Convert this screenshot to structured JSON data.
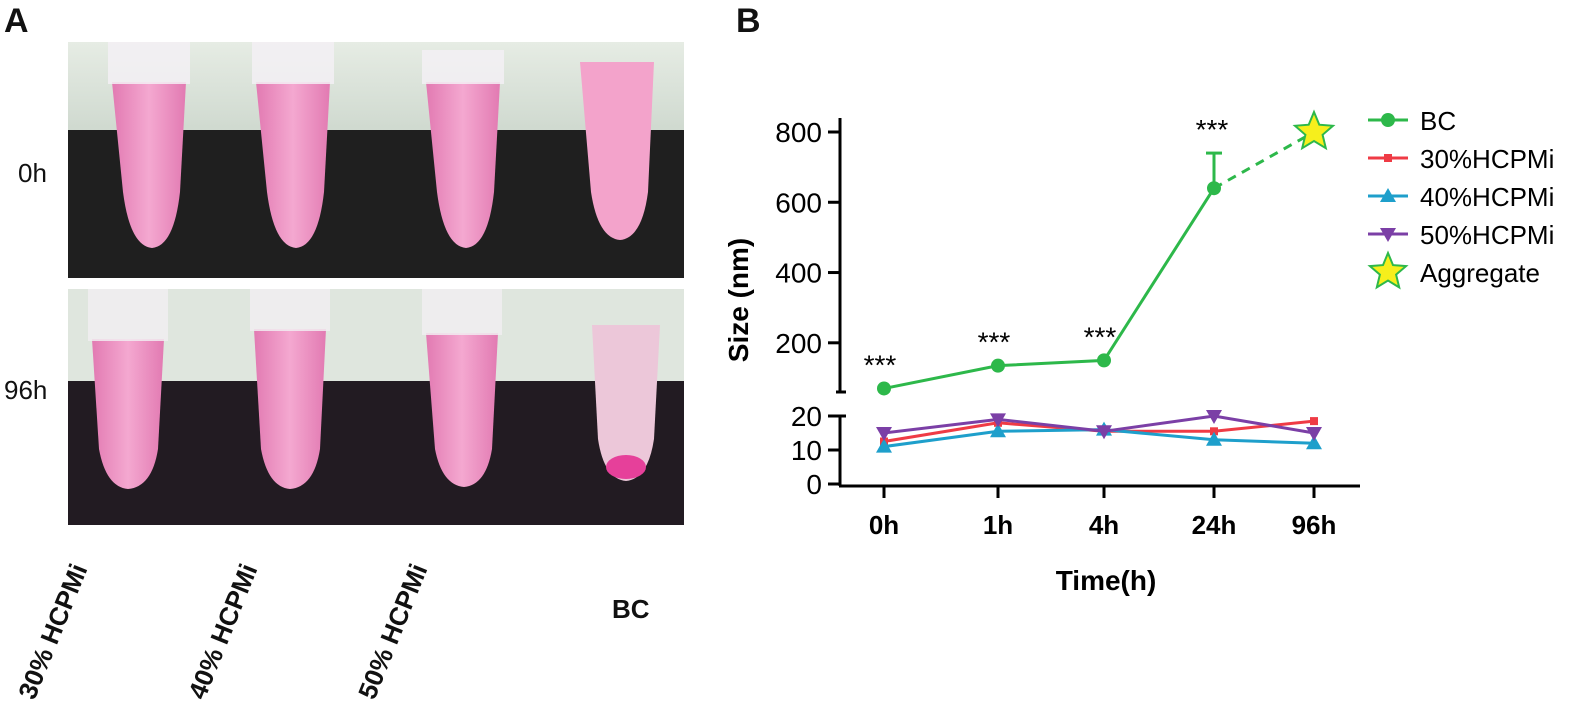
{
  "panel_a": {
    "label": "A",
    "rows": [
      {
        "label": "0h"
      },
      {
        "label": "96h"
      }
    ],
    "columns": [
      "30% HCPMi",
      "40% HCPMi",
      "50% HCPMi",
      "BC"
    ]
  },
  "panel_b": {
    "label": "B"
  },
  "colors": {
    "BC": "#2db84a",
    "30%HCPMi": "#ef3b45",
    "40%HCPMi": "#1e9fcb",
    "50%HCPMi": "#7b3fa6",
    "Aggregate_fill": "#f6ef1c",
    "Aggregate_stroke": "#2db84a"
  },
  "chart_data": {
    "type": "line",
    "xlabel": "Time(h)",
    "ylabel": "Size (nm)",
    "categories": [
      "0h",
      "1h",
      "4h",
      "24h",
      "96h"
    ],
    "y_axis": "broken",
    "y_segments": [
      {
        "range": [
          0,
          20
        ],
        "ticks": [
          0,
          10,
          20
        ]
      },
      {
        "range": [
          60,
          820
        ],
        "ticks": [
          200,
          400,
          600,
          800
        ]
      }
    ],
    "series": [
      {
        "name": "BC",
        "marker": "circle",
        "values": [
          70,
          135,
          150,
          640,
          null
        ],
        "error_top": [
          null,
          null,
          null,
          740,
          null
        ]
      },
      {
        "name": "30%HCPMi",
        "marker": "square",
        "values": [
          12.5,
          18,
          15.5,
          15.5,
          18.5
        ]
      },
      {
        "name": "40%HCPMi",
        "marker": "triangle-up",
        "values": [
          11,
          15.5,
          16,
          13,
          12
        ]
      },
      {
        "name": "50%HCPMi",
        "marker": "triangle-down",
        "values": [
          15,
          19,
          15.5,
          20,
          15
        ]
      }
    ],
    "aggregate": {
      "name": "Aggregate",
      "marker": "star",
      "category": "96h",
      "value": 800,
      "connector": "dashed from BC 24h"
    },
    "annotations": [
      {
        "text": "***",
        "category": "0h"
      },
      {
        "text": "***",
        "category": "1h"
      },
      {
        "text": "***",
        "category": "4h"
      },
      {
        "text": "***",
        "category": "24h"
      }
    ],
    "legend": {
      "placement": "top-right",
      "entries": [
        "BC",
        "30%HCPMi",
        "40%HCPMi",
        "50%HCPMi",
        "Aggregate"
      ]
    }
  }
}
